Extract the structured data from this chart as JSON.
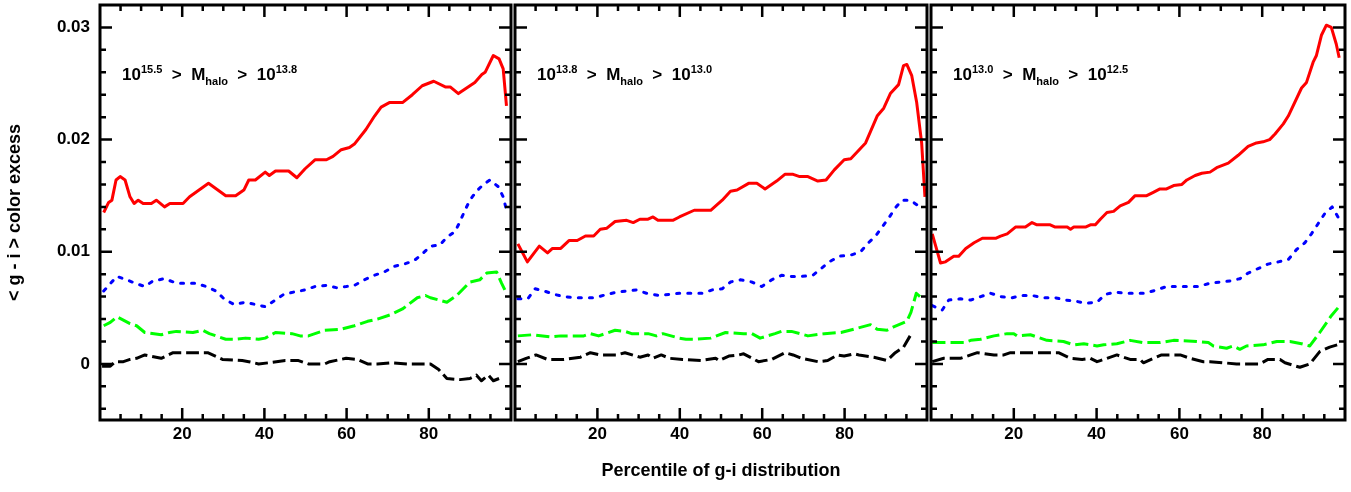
{
  "chart_data": [
    {
      "type": "line",
      "ylabel": "< g - i > color excess",
      "annotations": [
        "10$^{15.5}$ > M$_{halo}$ > 10$^{13.8}$"
      ],
      "legend": false,
      "grid": false,
      "xlim": [
        0,
        100
      ],
      "ylim": [
        -0.005,
        0.032
      ],
      "xticks": [
        {
          "value": 5,
          "label": null
        },
        {
          "value": 10,
          "label": null
        },
        {
          "value": 15,
          "label": null
        },
        20,
        {
          "value": 25,
          "label": null
        },
        {
          "value": 30,
          "label": null
        },
        {
          "value": 35,
          "label": null
        },
        40,
        {
          "value": 45,
          "label": null
        },
        {
          "value": 50,
          "label": null
        },
        {
          "value": 55,
          "label": null
        },
        60,
        {
          "value": 65,
          "label": null
        },
        {
          "value": 70,
          "label": null
        },
        {
          "value": 75,
          "label": null
        },
        80,
        {
          "value": 85,
          "label": null
        },
        {
          "value": 90,
          "label": null
        },
        {
          "value": 95,
          "label": null
        }
      ],
      "yticks": [
        {
          "value": -0.004,
          "label": null
        },
        {
          "value": -0.002,
          "label": null
        },
        0,
        {
          "value": 0.002,
          "label": null
        },
        {
          "value": 0.004,
          "label": null
        },
        {
          "value": 0.006,
          "label": null
        },
        {
          "value": 0.008,
          "label": null
        },
        0.01,
        {
          "value": 0.012,
          "label": null
        },
        {
          "value": 0.014,
          "label": null
        },
        {
          "value": 0.016,
          "label": null
        },
        {
          "value": 0.018,
          "label": null
        },
        0.02,
        {
          "value": 0.022,
          "label": null
        },
        {
          "value": 0.024,
          "label": null
        },
        {
          "value": 0.026,
          "label": null
        },
        {
          "value": 0.028,
          "label": null
        },
        0.03
      ],
      "series": [
        {
          "color": "#ff0000",
          "line_style": "solid",
          "x": [
            0.9,
            2.1,
            2.9,
            3.9,
            4.9,
            6.1,
            7.3,
            8.3,
            9.3,
            10.5,
            12.5,
            13.7,
            15.7,
            17.0,
            20.2,
            21.8,
            26.4,
            30.6,
            33.0,
            35.0,
            36.2,
            37.8,
            40.2,
            41.2,
            42.7,
            45.9,
            47.9,
            49.9,
            52.3,
            55.1,
            56.7,
            58.7,
            60.7,
            61.9,
            64.7,
            66.8,
            68.4,
            70.4,
            73.6,
            76.0,
            78.4,
            81.2,
            84.0,
            85.2,
            87.2,
            91.2,
            92.9,
            93.7,
            95.7,
            97.1,
            98.1,
            98.9
          ],
          "values": [
            0.0135,
            0.0144,
            0.0146,
            0.0164,
            0.0167,
            0.0164,
            0.0149,
            0.0143,
            0.0146,
            0.0143,
            0.0143,
            0.0146,
            0.014,
            0.0143,
            0.0143,
            0.0149,
            0.0161,
            0.015,
            0.015,
            0.0155,
            0.0164,
            0.0164,
            0.0171,
            0.0168,
            0.0172,
            0.0172,
            0.0166,
            0.0174,
            0.0182,
            0.0182,
            0.0185,
            0.0191,
            0.0193,
            0.0196,
            0.0209,
            0.0221,
            0.0229,
            0.0233,
            0.0233,
            0.024,
            0.0248,
            0.0252,
            0.0247,
            0.0247,
            0.0241,
            0.0251,
            0.0258,
            0.026,
            0.0275,
            0.0272,
            0.0263,
            0.023
          ]
        },
        {
          "color": "#0000ff",
          "line_style": "dotted",
          "x": [
            0.9,
            4.1,
            6.5,
            8.5,
            10.9,
            12.9,
            15.7,
            18.6,
            23.4,
            25.8,
            28.2,
            30.2,
            32.6,
            35.4,
            37.8,
            40.2,
            42.7,
            44.7,
            47.1,
            49.9,
            52.3,
            55.1,
            57.5,
            59.9,
            61.9,
            64.3,
            66.7,
            69.2,
            71.6,
            74.0,
            76.4,
            78.4,
            80.4,
            82.7,
            84.4,
            86.4,
            87.6,
            88.8,
            90.0,
            91.6,
            93.3,
            94.9,
            96.9,
            98.1,
            98.7
          ],
          "values": [
            0.0065,
            0.0078,
            0.0075,
            0.0072,
            0.0069,
            0.0074,
            0.0076,
            0.0072,
            0.0072,
            0.0069,
            0.0065,
            0.0058,
            0.0053,
            0.0055,
            0.0053,
            0.0051,
            0.0057,
            0.0062,
            0.0064,
            0.0066,
            0.0069,
            0.007,
            0.0068,
            0.0069,
            0.007,
            0.0075,
            0.0079,
            0.0082,
            0.0087,
            0.0089,
            0.0092,
            0.0098,
            0.0105,
            0.0106,
            0.0113,
            0.0118,
            0.0127,
            0.0137,
            0.0146,
            0.0154,
            0.016,
            0.0164,
            0.0158,
            0.0149,
            0.014
          ]
        },
        {
          "color": "#00ff00",
          "line_style": "dashed",
          "x": [
            0.9,
            2.5,
            4.1,
            7.3,
            8.9,
            10.9,
            14.9,
            16.9,
            18.6,
            22.6,
            25.0,
            26.6,
            30.6,
            33.0,
            35.4,
            38.6,
            40.2,
            42.7,
            46.7,
            48.7,
            50.7,
            54.7,
            58.7,
            61.9,
            65.1,
            67.5,
            70.8,
            73.6,
            77.2,
            79.2,
            80.4,
            84.4,
            86.8,
            90.0,
            92.4,
            94.1,
            96.5,
            97.7,
            98.5
          ],
          "values": [
            0.0034,
            0.0037,
            0.0042,
            0.0036,
            0.0034,
            0.0028,
            0.0026,
            0.0028,
            0.0029,
            0.0028,
            0.003,
            0.0027,
            0.0022,
            0.0022,
            0.0023,
            0.0022,
            0.0023,
            0.0028,
            0.0027,
            0.0025,
            0.0025,
            0.003,
            0.0031,
            0.0034,
            0.0038,
            0.004,
            0.0044,
            0.0049,
            0.0059,
            0.0061,
            0.0059,
            0.0055,
            0.0061,
            0.0073,
            0.0075,
            0.0081,
            0.0082,
            0.0072,
            0.0066
          ]
        },
        {
          "color": "#000000",
          "line_style": "dashed",
          "x": [
            0.5,
            2.5,
            3.7,
            5.7,
            7.3,
            8.9,
            10.9,
            14.9,
            17.8,
            26.2,
            29.8,
            34.6,
            36.2,
            38.6,
            41.0,
            45.1,
            48.3,
            50.7,
            54.7,
            55.9,
            59.9,
            62.7,
            65.1,
            67.5,
            70.8,
            74.8,
            80.4,
            82.4,
            84.4,
            87.6,
            90.0,
            91.6,
            92.8,
            94.5,
            95.7,
            97.1
          ],
          "values": [
            -0.0002,
            -0.0002,
            0.0002,
            0.0002,
            0.0004,
            0.0005,
            0.0008,
            0.0005,
            0.001,
            0.001,
            0.0004,
            0.0003,
            0.0002,
            0,
            0.0001,
            0.0003,
            0.0003,
            0,
            0,
            0.0002,
            0.0005,
            0.0004,
            0,
            0,
            0.0001,
            0,
            0,
            -0.0005,
            -0.0013,
            -0.0014,
            -0.0013,
            -0.001,
            -0.0015,
            -0.001,
            -0.0015,
            -0.0013
          ]
        }
      ]
    },
    {
      "type": "line",
      "xlabel": "Percentile of g-i distribution",
      "annotations": [
        "10$^{13.8}$ > M$_{halo}$ > 10$^{13.0}$"
      ],
      "legend": false,
      "grid": false,
      "tick_labels": "x",
      "xlim": [
        0,
        100
      ],
      "ylim": [
        -0.005,
        0.032
      ],
      "xticks": [
        {
          "value": 5,
          "label": null
        },
        {
          "value": 10,
          "label": null
        },
        {
          "value": 15,
          "label": null
        },
        20,
        {
          "value": 25,
          "label": null
        },
        {
          "value": 30,
          "label": null
        },
        {
          "value": 35,
          "label": null
        },
        40,
        {
          "value": 45,
          "label": null
        },
        {
          "value": 50,
          "label": null
        },
        {
          "value": 55,
          "label": null
        },
        60,
        {
          "value": 65,
          "label": null
        },
        {
          "value": 70,
          "label": null
        },
        {
          "value": 75,
          "label": null
        },
        80,
        {
          "value": 85,
          "label": null
        },
        {
          "value": 90,
          "label": null
        },
        {
          "value": 95,
          "label": null
        }
      ],
      "yticks": [
        {
          "value": -0.004,
          "label": null
        },
        {
          "value": -0.002,
          "label": null
        },
        0,
        {
          "value": 0.002,
          "label": null
        },
        {
          "value": 0.004,
          "label": null
        },
        {
          "value": 0.006,
          "label": null
        },
        {
          "value": 0.008,
          "label": null
        },
        0.01,
        {
          "value": 0.012,
          "label": null
        },
        {
          "value": 0.014,
          "label": null
        },
        {
          "value": 0.016,
          "label": null
        },
        {
          "value": 0.018,
          "label": null
        },
        0.02,
        {
          "value": 0.022,
          "label": null
        },
        {
          "value": 0.024,
          "label": null
        },
        {
          "value": 0.026,
          "label": null
        },
        {
          "value": 0.028,
          "label": null
        },
        0.03
      ],
      "series": [
        {
          "color": "#ff0000",
          "line_style": "solid",
          "x": [
            0.7,
            3.0,
            5.9,
            7.9,
            9.1,
            11.1,
            13.1,
            15.1,
            17.1,
            19.1,
            20.7,
            22.3,
            24.3,
            27.1,
            28.7,
            30.3,
            32.3,
            33.5,
            34.7,
            38.3,
            39.9,
            43.5,
            47.5,
            50.3,
            52.3,
            53.9,
            56.7,
            58.7,
            60.7,
            63.5,
            65.5,
            67.5,
            69.1,
            71.1,
            73.5,
            75.5,
            77.5,
            79.9,
            81.5,
            85.1,
            87.9,
            89.5,
            91.1,
            93.1,
            94.3,
            95.1,
            96.3,
            97.5,
            98.7,
            99.5
          ],
          "values": [
            0.0107,
            0.0091,
            0.0105,
            0.0099,
            0.0103,
            0.0103,
            0.011,
            0.011,
            0.0114,
            0.0114,
            0.012,
            0.0121,
            0.0127,
            0.0128,
            0.0126,
            0.0129,
            0.0129,
            0.0131,
            0.0128,
            0.0128,
            0.0131,
            0.0137,
            0.0137,
            0.0146,
            0.0154,
            0.0155,
            0.0161,
            0.0161,
            0.0156,
            0.0163,
            0.0169,
            0.0169,
            0.0167,
            0.0167,
            0.0163,
            0.0164,
            0.0173,
            0.0182,
            0.0183,
            0.0197,
            0.0221,
            0.0228,
            0.0241,
            0.0249,
            0.0266,
            0.0267,
            0.0257,
            0.0233,
            0.0197,
            0.0149
          ]
        },
        {
          "color": "#0000ff",
          "line_style": "dotted",
          "x": [
            0.7,
            3.1,
            4.9,
            7.1,
            9.5,
            11.9,
            14.3,
            19.5,
            22.3,
            24.7,
            29.5,
            31.9,
            35.1,
            37.5,
            39.9,
            45.5,
            47.9,
            50.3,
            52.3,
            54.7,
            57.5,
            59.9,
            62.3,
            64.7,
            67.1,
            69.5,
            72.3,
            74.3,
            76.3,
            78.7,
            81.5,
            83.9,
            85.5,
            87.5,
            89.1,
            90.7,
            92.3,
            93.9,
            95.9,
            97.5
          ],
          "values": [
            0.0058,
            0.0058,
            0.0067,
            0.0065,
            0.0062,
            0.006,
            0.0059,
            0.0059,
            0.0062,
            0.0064,
            0.0066,
            0.0063,
            0.0061,
            0.0062,
            0.0063,
            0.0063,
            0.0066,
            0.0067,
            0.0073,
            0.0075,
            0.0073,
            0.0069,
            0.0075,
            0.0079,
            0.0078,
            0.0078,
            0.0079,
            0.0085,
            0.0091,
            0.0096,
            0.0097,
            0.01,
            0.0107,
            0.0114,
            0.0122,
            0.013,
            0.0139,
            0.0146,
            0.0146,
            0.0142
          ]
        },
        {
          "color": "#00ff00",
          "line_style": "dashed",
          "x": [
            0.7,
            4.3,
            8.7,
            11.1,
            13.1,
            16.7,
            18.3,
            20.3,
            24.3,
            26.7,
            28.3,
            32.3,
            34.3,
            35.9,
            39.9,
            41.5,
            43.5,
            47.5,
            51.1,
            55.5,
            57.5,
            59.5,
            63.1,
            64.7,
            67.1,
            71.1,
            75.1,
            79.1,
            82.3,
            86.3,
            87.9,
            90.3,
            91.9,
            95.1,
            96.1,
            97.4,
            98.3
          ],
          "values": [
            0.0025,
            0.0026,
            0.0024,
            0.0025,
            0.0025,
            0.0025,
            0.0027,
            0.0025,
            0.003,
            0.0029,
            0.0027,
            0.0027,
            0.0025,
            0.0027,
            0.0023,
            0.0022,
            0.0022,
            0.0023,
            0.0028,
            0.0027,
            0.0027,
            0.0023,
            0.0027,
            0.0029,
            0.0029,
            0.0025,
            0.0027,
            0.0028,
            0.0031,
            0.0035,
            0.0031,
            0.003,
            0.0033,
            0.0038,
            0.0046,
            0.0063,
            0.006
          ]
        },
        {
          "color": "#000000",
          "line_style": "dashed",
          "x": [
            0.7,
            2.7,
            5.1,
            7.9,
            11.9,
            15.9,
            18.3,
            20.7,
            24.7,
            26.7,
            30.3,
            32.3,
            33.5,
            35.5,
            37.5,
            40.7,
            45.1,
            48.7,
            49.5,
            51.9,
            54.3,
            55.5,
            59.1,
            62.3,
            65.5,
            67.5,
            69.5,
            73.5,
            75.9,
            78.3,
            79.9,
            82.3,
            83.5,
            87.1,
            90.3,
            92.3,
            94.3,
            95.9
          ],
          "values": [
            0.0002,
            0.0005,
            0.0008,
            0.0004,
            0.0004,
            0.0006,
            0.001,
            0.0008,
            0.0008,
            0.001,
            0.0006,
            0.0008,
            0.0005,
            0.0008,
            0.0005,
            0.0004,
            0.0003,
            0.0005,
            0.0003,
            0.0007,
            0.0008,
            0.0009,
            0.0002,
            0.0004,
            0.001,
            0.0008,
            0.0005,
            0.0002,
            0.0003,
            0.0008,
            0.0007,
            0.0009,
            0.0008,
            0.0006,
            0.0003,
            0.001,
            0.0015,
            0.0025
          ]
        }
      ]
    },
    {
      "type": "line",
      "annotations": [
        "10$^{13.0}$ > M$_{halo}$ > 10$^{12.5}$"
      ],
      "legend": false,
      "grid": false,
      "tick_labels": "x",
      "xlim": [
        0,
        100
      ],
      "ylim": [
        -0.005,
        0.032
      ],
      "xticks": [
        {
          "value": 5,
          "label": null
        },
        {
          "value": 10,
          "label": null
        },
        {
          "value": 15,
          "label": null
        },
        20,
        {
          "value": 25,
          "label": null
        },
        {
          "value": 30,
          "label": null
        },
        {
          "value": 35,
          "label": null
        },
        40,
        {
          "value": 45,
          "label": null
        },
        {
          "value": 50,
          "label": null
        },
        {
          "value": 55,
          "label": null
        },
        60,
        {
          "value": 65,
          "label": null
        },
        {
          "value": 70,
          "label": null
        },
        {
          "value": 75,
          "label": null
        },
        80,
        {
          "value": 85,
          "label": null
        },
        {
          "value": 90,
          "label": null
        },
        {
          "value": 95,
          "label": null
        }
      ],
      "yticks": [
        {
          "value": -0.004,
          "label": null
        },
        {
          "value": -0.002,
          "label": null
        },
        0,
        {
          "value": 0.002,
          "label": null
        },
        {
          "value": 0.004,
          "label": null
        },
        {
          "value": 0.006,
          "label": null
        },
        {
          "value": 0.008,
          "label": null
        },
        0.01,
        {
          "value": 0.012,
          "label": null
        },
        {
          "value": 0.014,
          "label": null
        },
        {
          "value": 0.016,
          "label": null
        },
        {
          "value": 0.018,
          "label": null
        },
        0.02,
        {
          "value": 0.022,
          "label": null
        },
        {
          "value": 0.024,
          "label": null
        },
        {
          "value": 0.026,
          "label": null
        },
        {
          "value": 0.028,
          "label": null
        },
        0.03
      ],
      "series": [
        {
          "color": "#ff0000",
          "line_style": "solid",
          "x": [
            0.3,
            2.3,
            3.5,
            5.5,
            6.7,
            8.4,
            10.4,
            12.4,
            15.6,
            16.8,
            18.4,
            20.4,
            22.8,
            24.4,
            25.6,
            28.8,
            30.0,
            32.9,
            33.7,
            34.5,
            37.3,
            38.5,
            39.7,
            40.9,
            42.5,
            44.1,
            45.7,
            47.7,
            49.3,
            52.1,
            53.7,
            55.3,
            56.9,
            58.6,
            60.6,
            61.8,
            63.8,
            65.4,
            67.4,
            69.0,
            71.8,
            74.2,
            76.6,
            78.6,
            80.2,
            81.8,
            83.1,
            85.1,
            86.3,
            89.5,
            90.7,
            92.3,
            93.1,
            94.3,
            95.5,
            96.7,
            97.9,
            98.6
          ],
          "values": [
            0.0116,
            0.009,
            0.0091,
            0.0096,
            0.0096,
            0.0103,
            0.0108,
            0.0112,
            0.0112,
            0.0114,
            0.0116,
            0.0122,
            0.0122,
            0.0126,
            0.0124,
            0.0124,
            0.0122,
            0.0122,
            0.012,
            0.0122,
            0.0122,
            0.0124,
            0.0124,
            0.0129,
            0.0135,
            0.0136,
            0.0141,
            0.0144,
            0.015,
            0.015,
            0.0153,
            0.0156,
            0.0156,
            0.0159,
            0.016,
            0.0164,
            0.0168,
            0.017,
            0.0171,
            0.0175,
            0.0179,
            0.0186,
            0.0194,
            0.0197,
            0.0198,
            0.02,
            0.0205,
            0.0214,
            0.0221,
            0.0246,
            0.0251,
            0.0269,
            0.0275,
            0.0293,
            0.0302,
            0.03,
            0.0285,
            0.0273
          ]
        },
        {
          "color": "#0000ff",
          "line_style": "dotted",
          "x": [
            0.3,
            2.7,
            4.3,
            7.1,
            9.6,
            12.0,
            14.4,
            16.8,
            19.6,
            22.0,
            24.4,
            27.2,
            30.0,
            32.4,
            34.9,
            37.3,
            40.1,
            42.1,
            44.5,
            46.9,
            49.3,
            51.7,
            54.5,
            56.9,
            59.4,
            61.8,
            64.6,
            67.4,
            69.8,
            72.2,
            74.6,
            76.6,
            79.0,
            81.4,
            83.9,
            86.3,
            88.3,
            90.3,
            91.9,
            93.5,
            95.1,
            96.9,
            98.3
          ],
          "values": [
            0.0052,
            0.0048,
            0.0057,
            0.0058,
            0.0057,
            0.006,
            0.0063,
            0.006,
            0.0059,
            0.0061,
            0.0061,
            0.0059,
            0.0059,
            0.0057,
            0.0056,
            0.0054,
            0.0055,
            0.0062,
            0.0064,
            0.0063,
            0.0063,
            0.0063,
            0.0066,
            0.0069,
            0.0069,
            0.0069,
            0.0069,
            0.0072,
            0.0073,
            0.0074,
            0.0076,
            0.0081,
            0.0085,
            0.0089,
            0.0091,
            0.0093,
            0.0102,
            0.0108,
            0.0116,
            0.0125,
            0.0134,
            0.014,
            0.0131
          ]
        },
        {
          "color": "#00ff00",
          "line_style": "dashed",
          "x": [
            0.3,
            3.9,
            8.0,
            9.6,
            12.0,
            15.2,
            18.4,
            20.0,
            20.8,
            24.0,
            25.6,
            28.0,
            32.0,
            34.5,
            36.9,
            40.1,
            41.7,
            44.9,
            48.1,
            51.3,
            55.3,
            58.6,
            64.2,
            67.0,
            68.2,
            71.4,
            73.0,
            74.6,
            76.2,
            80.2,
            83.5,
            86.7,
            89.5,
            91.5,
            93.9,
            96.7,
            98.3
          ],
          "values": [
            0.0019,
            0.0019,
            0.0019,
            0.0021,
            0.0022,
            0.0025,
            0.0027,
            0.0027,
            0.0025,
            0.0026,
            0.0024,
            0.0021,
            0.002,
            0.0017,
            0.0018,
            0.0016,
            0.0017,
            0.0018,
            0.0021,
            0.0019,
            0.0019,
            0.0021,
            0.002,
            0.0019,
            0.0016,
            0.0014,
            0.0016,
            0.0013,
            0.0016,
            0.0017,
            0.002,
            0.002,
            0.0018,
            0.0016,
            0.0028,
            0.0043,
            0.005
          ]
        },
        {
          "color": "#000000",
          "line_style": "dashed",
          "x": [
            0.3,
            3.1,
            7.1,
            9.6,
            11.2,
            15.2,
            17.6,
            19.2,
            26.8,
            30.8,
            33.7,
            36.5,
            38.5,
            40.1,
            40.9,
            44.9,
            48.1,
            50.5,
            51.3,
            53.7,
            55.7,
            60.2,
            62.6,
            65.8,
            67.4,
            70.6,
            73.8,
            79.4,
            81.4,
            84.3,
            85.5,
            89.1,
            91.5,
            93.9,
            96.3,
            98.1
          ],
          "values": [
            0.0002,
            0.0005,
            0.0005,
            0.0008,
            0.001,
            0.0008,
            0.0008,
            0.001,
            0.001,
            0.001,
            0.0005,
            0.0004,
            0.0005,
            0.0002,
            0.0003,
            0.0008,
            0.0004,
            0.0004,
            0.0001,
            0.0005,
            0.0008,
            0.0008,
            0.0005,
            0.0002,
            0.0002,
            0.0001,
            0,
            0,
            0.0004,
            0.0004,
            0.0001,
            -0.0003,
            0,
            0.0011,
            0.0015,
            0.0017
          ]
        }
      ]
    }
  ]
}
